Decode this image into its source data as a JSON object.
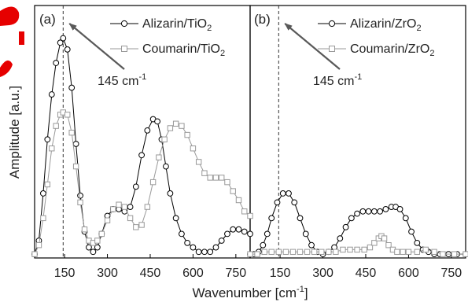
{
  "chart_data": {
    "type": "line",
    "ylabel": "Amplitude [a.u.]",
    "xlabel_main": "Wavenumber [cm",
    "xlabel_sup": "-1",
    "xlabel_tail": "]",
    "xlim": [
      45,
      800
    ],
    "ylim": [
      0,
      1.0
    ],
    "x_ticks": [
      "150",
      "300",
      "450",
      "600",
      "750"
    ],
    "x_tick_values": [
      150,
      300,
      450,
      600,
      750
    ],
    "colors": {
      "series1": "#000000",
      "series2": "#999999",
      "annotation": "#595959",
      "watermark": "#e60000"
    },
    "panels": [
      {
        "label": "(a)",
        "annotation": {
          "value": "145 cm",
          "sup": "-1",
          "x": 145
        },
        "series": [
          {
            "name_main": "Alizarin/TiO",
            "name_sub": "2",
            "marker": "circle",
            "color_key": "series1",
            "points": [
              [
                45,
                0.01
              ],
              [
                60,
                0.07
              ],
              [
                75,
                0.28
              ],
              [
                90,
                0.52
              ],
              [
                105,
                0.72
              ],
              [
                120,
                0.86
              ],
              [
                135,
                0.95
              ],
              [
                145,
                0.97
              ],
              [
                160,
                0.92
              ],
              [
                175,
                0.75
              ],
              [
                190,
                0.5
              ],
              [
                205,
                0.27
              ],
              [
                220,
                0.11
              ],
              [
                235,
                0.04
              ],
              [
                250,
                0.02
              ],
              [
                265,
                0.04
              ],
              [
                280,
                0.1
              ],
              [
                300,
                0.18
              ],
              [
                320,
                0.21
              ],
              [
                340,
                0.21
              ],
              [
                360,
                0.2
              ],
              [
                380,
                0.22
              ],
              [
                400,
                0.31
              ],
              [
                420,
                0.45
              ],
              [
                440,
                0.56
              ],
              [
                460,
                0.61
              ],
              [
                475,
                0.6
              ],
              [
                490,
                0.52
              ],
              [
                505,
                0.4
              ],
              [
                520,
                0.28
              ],
              [
                540,
                0.17
              ],
              [
                560,
                0.1
              ],
              [
                580,
                0.06
              ],
              [
                600,
                0.04
              ],
              [
                620,
                0.02
              ],
              [
                640,
                0.02
              ],
              [
                660,
                0.02
              ],
              [
                680,
                0.04
              ],
              [
                700,
                0.07
              ],
              [
                720,
                0.1
              ],
              [
                740,
                0.12
              ],
              [
                760,
                0.12
              ],
              [
                780,
                0.11
              ],
              [
                800,
                0.1
              ]
            ]
          },
          {
            "name_main": "Coumarin/TiO",
            "name_sub": "2",
            "marker": "square",
            "color_key": "series2",
            "points": [
              [
                45,
                0.01
              ],
              [
                60,
                0.05
              ],
              [
                75,
                0.17
              ],
              [
                90,
                0.32
              ],
              [
                105,
                0.48
              ],
              [
                120,
                0.58
              ],
              [
                135,
                0.63
              ],
              [
                145,
                0.64
              ],
              [
                160,
                0.63
              ],
              [
                175,
                0.55
              ],
              [
                190,
                0.4
              ],
              [
                205,
                0.24
              ],
              [
                220,
                0.12
              ],
              [
                235,
                0.07
              ],
              [
                250,
                0.06
              ],
              [
                265,
                0.07
              ],
              [
                280,
                0.1
              ],
              [
                300,
                0.16
              ],
              [
                320,
                0.21
              ],
              [
                340,
                0.23
              ],
              [
                360,
                0.22
              ],
              [
                380,
                0.17
              ],
              [
                400,
                0.13
              ],
              [
                420,
                0.14
              ],
              [
                440,
                0.22
              ],
              [
                460,
                0.33
              ],
              [
                480,
                0.44
              ],
              [
                500,
                0.52
              ],
              [
                520,
                0.57
              ],
              [
                540,
                0.59
              ],
              [
                560,
                0.58
              ],
              [
                580,
                0.54
              ],
              [
                600,
                0.48
              ],
              [
                620,
                0.42
              ],
              [
                640,
                0.37
              ],
              [
                660,
                0.35
              ],
              [
                680,
                0.35
              ],
              [
                700,
                0.35
              ],
              [
                720,
                0.33
              ],
              [
                740,
                0.29
              ],
              [
                760,
                0.25
              ],
              [
                780,
                0.2
              ],
              [
                800,
                0.18
              ]
            ]
          }
        ]
      },
      {
        "label": "(b)",
        "annotation": {
          "value": "145 cm",
          "sup": "-1",
          "x": 145
        },
        "series": [
          {
            "name_main": "Alizarin/ZrO",
            "name_sub": "2",
            "marker": "circle",
            "color_key": "series1",
            "points": [
              [
                45,
                0.01
              ],
              [
                60,
                0.01
              ],
              [
                75,
                0.02
              ],
              [
                90,
                0.05
              ],
              [
                105,
                0.1
              ],
              [
                120,
                0.17
              ],
              [
                140,
                0.24
              ],
              [
                160,
                0.28
              ],
              [
                180,
                0.28
              ],
              [
                200,
                0.24
              ],
              [
                220,
                0.17
              ],
              [
                240,
                0.1
              ],
              [
                260,
                0.05
              ],
              [
                280,
                0.02
              ],
              [
                300,
                0.01
              ],
              [
                320,
                0.02
              ],
              [
                340,
                0.04
              ],
              [
                360,
                0.08
              ],
              [
                380,
                0.13
              ],
              [
                400,
                0.17
              ],
              [
                420,
                0.19
              ],
              [
                440,
                0.2
              ],
              [
                460,
                0.2
              ],
              [
                480,
                0.2
              ],
              [
                500,
                0.2
              ],
              [
                520,
                0.21
              ],
              [
                540,
                0.22
              ],
              [
                555,
                0.22
              ],
              [
                570,
                0.21
              ],
              [
                590,
                0.17
              ],
              [
                610,
                0.11
              ],
              [
                630,
                0.06
              ],
              [
                650,
                0.03
              ],
              [
                670,
                0.02
              ],
              [
                690,
                0.01
              ],
              [
                710,
                0.01
              ],
              [
                740,
                0.01
              ],
              [
                770,
                0.01
              ],
              [
                800,
                0.01
              ]
            ]
          },
          {
            "name_main": "Coumarin/ZrO",
            "name_sub": "2",
            "marker": "square",
            "color_key": "series2",
            "points": [
              [
                45,
                0.01
              ],
              [
                70,
                0.01
              ],
              [
                95,
                0.02
              ],
              [
                120,
                0.02
              ],
              [
                145,
                0.02
              ],
              [
                170,
                0.02
              ],
              [
                195,
                0.02
              ],
              [
                220,
                0.02
              ],
              [
                245,
                0.02
              ],
              [
                270,
                0.02
              ],
              [
                295,
                0.02
              ],
              [
                320,
                0.02
              ],
              [
                345,
                0.02
              ],
              [
                370,
                0.03
              ],
              [
                395,
                0.03
              ],
              [
                420,
                0.03
              ],
              [
                445,
                0.03
              ],
              [
                465,
                0.04
              ],
              [
                480,
                0.06
              ],
              [
                495,
                0.08
              ],
              [
                505,
                0.09
              ],
              [
                515,
                0.08
              ],
              [
                530,
                0.05
              ],
              [
                545,
                0.03
              ],
              [
                560,
                0.02
              ],
              [
                580,
                0.02
              ],
              [
                600,
                0.02
              ],
              [
                630,
                0.02
              ],
              [
                660,
                0.03
              ],
              [
                690,
                0.02
              ],
              [
                720,
                0.01
              ],
              [
                760,
                0.01
              ],
              [
                800,
                0.01
              ]
            ]
          }
        ]
      }
    ]
  }
}
